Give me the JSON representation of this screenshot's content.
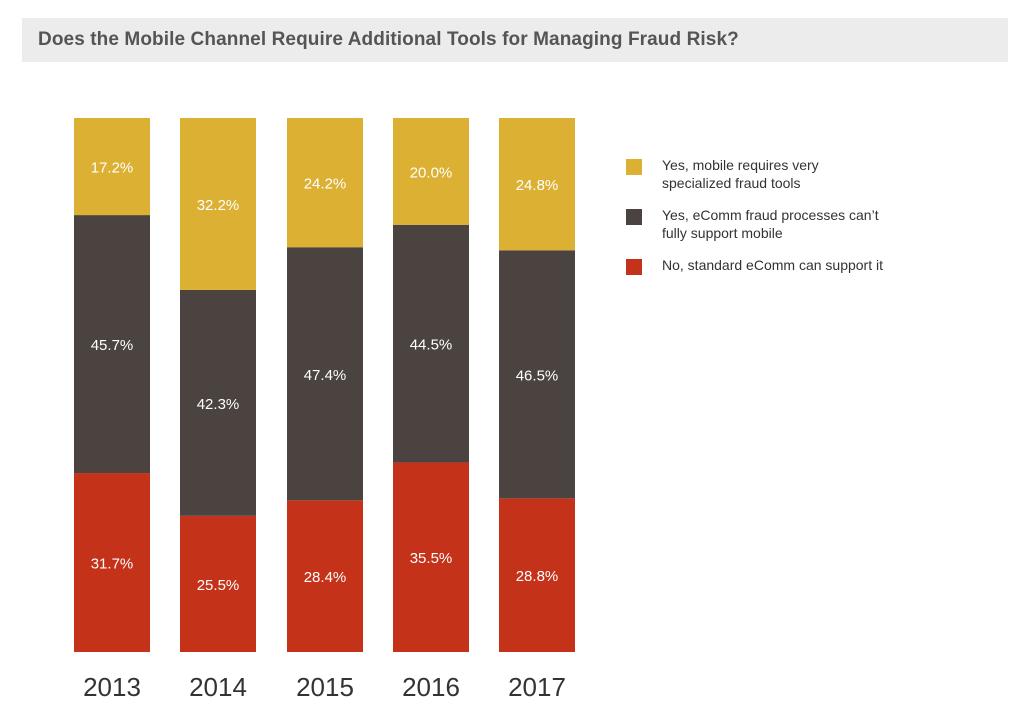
{
  "header": {
    "title": "Does the Mobile Channel Require Additional Tools for Managing Fraud Risk?"
  },
  "chart_data": {
    "type": "bar",
    "stacked": true,
    "title": "Does the Mobile Channel Require Additional Tools for Managing Fraud Risk?",
    "xlabel": "",
    "ylabel": "",
    "categories": [
      "2013",
      "2014",
      "2015",
      "2016",
      "2017"
    ],
    "series": [
      {
        "name": "No, standard eComm can support it",
        "color": "#c4321a",
        "values": [
          31.7,
          25.5,
          28.4,
          35.5,
          28.8
        ]
      },
      {
        "name": "Yes, eComm fraud processes can't fully support mobile",
        "color": "#4a4340",
        "values": [
          45.7,
          42.3,
          47.4,
          44.5,
          46.5
        ]
      },
      {
        "name": "Yes, mobile requires very specialized fraud tools",
        "color": "#dcb033",
        "values": [
          17.2,
          32.2,
          24.2,
          20.0,
          24.8
        ]
      }
    ],
    "data_labels": [
      [
        "31.7%",
        "25.5%",
        "28.4%",
        "35.5%",
        "28.8%"
      ],
      [
        "45.7%",
        "42.3%",
        "47.4%",
        "44.5%",
        "46.5%"
      ],
      [
        "17.2%",
        "32.2%",
        "24.2%",
        "20.0%",
        "24.8%"
      ]
    ],
    "grid": false,
    "legend_position": "right"
  },
  "legend": {
    "items": [
      {
        "label": "Yes, mobile requires very specialized fraud tools",
        "color": "#dcb033"
      },
      {
        "label": "Yes, eComm fraud processes can’t fully support mobile",
        "color": "#4a4340"
      },
      {
        "label": "No, standard eComm can support it",
        "color": "#c4321a"
      }
    ]
  }
}
